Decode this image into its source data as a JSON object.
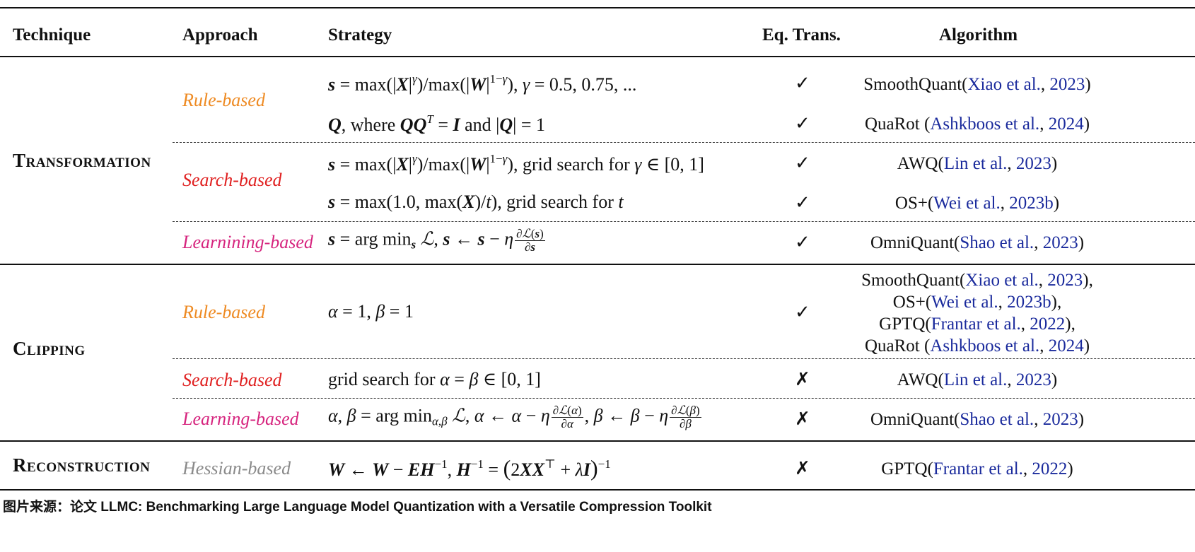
{
  "headers": {
    "technique": "Technique",
    "approach": "Approach",
    "strategy": "Strategy",
    "eq_trans": "Eq. Trans.",
    "algorithm": "Algorithm"
  },
  "techniques": {
    "transformation": {
      "first": "T",
      "rest": "RANSFORMATION"
    },
    "clipping": {
      "first": "C",
      "rest": "LIPPING"
    },
    "reconstruction": {
      "first": "R",
      "rest": "ECONSTRUCTION"
    }
  },
  "approaches": {
    "t_rule": "Rule-based",
    "t_search": "Search-based",
    "t_learn": "Learnining-based",
    "c_rule": "Rule-based",
    "c_search": "Search-based",
    "c_learn": "Learning-based",
    "r_hessian": "Hessian-based"
  },
  "marks": {
    "check": "✓",
    "cross": "✗"
  },
  "algorithms": {
    "r1": {
      "name": "SmoothQuant(",
      "cite_a": "Xiao et al.",
      "sep": ", ",
      "cite_b": "2023",
      "end": ")"
    },
    "r2": {
      "name": "QuaRot (",
      "cite_a": "Ashkboos et al.",
      "sep": ", ",
      "cite_b": "2024",
      "end": ")"
    },
    "r3": {
      "name": "AWQ(",
      "cite_a": "Lin et al.",
      "sep": ", ",
      "cite_b": "2023",
      "end": ")"
    },
    "r4": {
      "name": "OS+(",
      "cite_a": "Wei et al.",
      "sep": ", ",
      "cite_b": "2023b",
      "end": ")"
    },
    "r5": {
      "name": "OmniQuant(",
      "cite_a": "Shao et al.",
      "sep": ", ",
      "cite_b": "2023",
      "end": ")"
    },
    "r6a": {
      "name": "SmoothQuant(",
      "cite_a": "Xiao et al.",
      "sep": ", ",
      "cite_b": "2023",
      "end": "),"
    },
    "r6b": {
      "name": "OS+(",
      "cite_a": "Wei et al.",
      "sep": ", ",
      "cite_b": "2023b",
      "end": "),"
    },
    "r6c": {
      "name": "GPTQ(",
      "cite_a": "Frantar et al.",
      "sep": ", ",
      "cite_b": "2022",
      "end": "),"
    },
    "r6d": {
      "name": "QuaRot (",
      "cite_a": "Ashkboos et al.",
      "sep": ", ",
      "cite_b": "2024",
      "end": ")"
    },
    "r7": {
      "name": "AWQ(",
      "cite_a": "Lin et al.",
      "sep": ", ",
      "cite_b": "2023",
      "end": ")"
    },
    "r8": {
      "name": "OmniQuant(",
      "cite_a": "Shao et al.",
      "sep": ", ",
      "cite_b": "2023",
      "end": ")"
    },
    "r9": {
      "name": "GPTQ(",
      "cite_a": "Frantar et al.",
      "sep": ", ",
      "cite_b": "2022",
      "end": ")"
    }
  },
  "strategy_text": {
    "where": ", where ",
    "and": " and ",
    "grid_gamma": ", grid search for ",
    "grid_t": ", grid search for ",
    "grid_alpha": "grid search for "
  },
  "caption": "图片来源：论文 LLMC: Benchmarking Large Language Model Quantization with a Versatile Compression Toolkit",
  "colors": {
    "rule": "#ee8a22",
    "search": "#e02020",
    "learning": "#d6247e",
    "hessian": "#8a8a8a",
    "cite": "#1a2a9c"
  }
}
